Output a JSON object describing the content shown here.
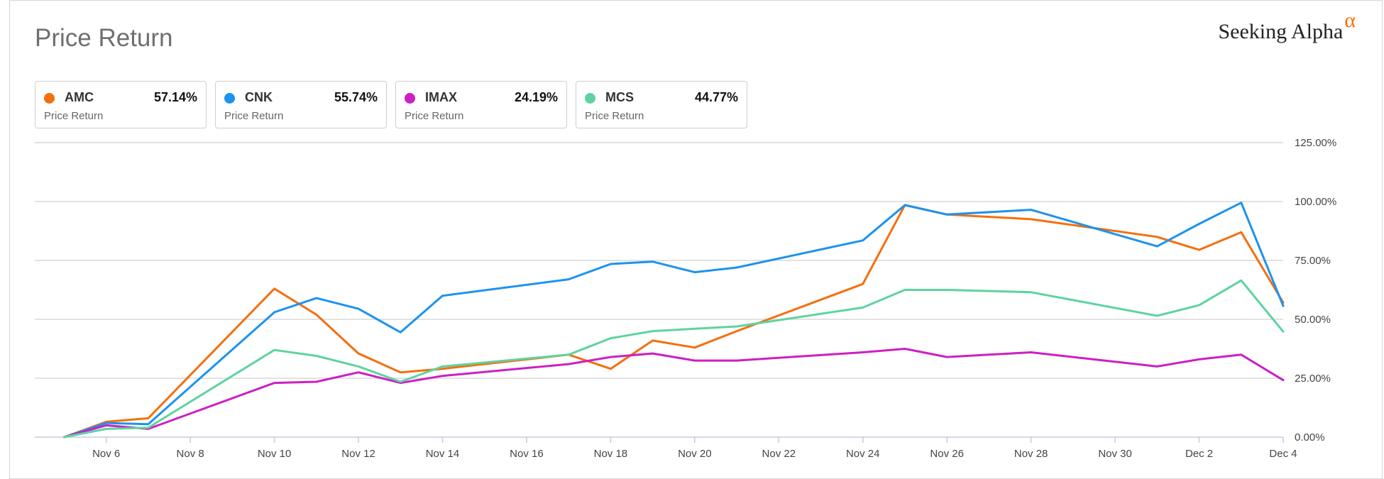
{
  "title": "Price Return",
  "brand": {
    "name": "Seeking Alpha",
    "mark": "α"
  },
  "cards": [
    {
      "ticker": "AMC",
      "value": "57.14%",
      "sub": "Price Return",
      "color": "#f46f0e"
    },
    {
      "ticker": "CNK",
      "value": "55.74%",
      "sub": "Price Return",
      "color": "#1c93ee"
    },
    {
      "ticker": "IMAX",
      "value": "24.19%",
      "sub": "Price Return",
      "color": "#cc1fc4"
    },
    {
      "ticker": "MCS",
      "value": "44.77%",
      "sub": "Price Return",
      "color": "#5ed3a0"
    }
  ],
  "chart_data": {
    "type": "line",
    "xlim": [
      4.3,
      34.0
    ],
    "ylim": [
      0,
      125
    ],
    "y_ticks": [
      0,
      25,
      50,
      75,
      100,
      125
    ],
    "y_tick_labels": [
      "0.00%",
      "25.00%",
      "50.00%",
      "75.00%",
      "100.00%",
      "125.00%"
    ],
    "x_ticks": [
      6,
      8,
      10,
      12,
      14,
      16,
      18,
      20,
      22,
      24,
      26,
      28,
      30,
      32,
      34
    ],
    "x_tick_labels": [
      "Nov 6",
      "Nov 8",
      "Nov 10",
      "Nov 12",
      "Nov 14",
      "Nov 16",
      "Nov 18",
      "Nov 20",
      "Nov 22",
      "Nov 24",
      "Nov 26",
      "Nov 28",
      "Nov 30",
      "Dec 2",
      "Dec 4"
    ],
    "grid": true,
    "series": [
      {
        "name": "AMC",
        "color": "#f46f0e",
        "points": [
          [
            5,
            0
          ],
          [
            6,
            6.5
          ],
          [
            7,
            8
          ],
          [
            10,
            63
          ],
          [
            11,
            52
          ],
          [
            12,
            35.5
          ],
          [
            13,
            27.5
          ],
          [
            14,
            29
          ],
          [
            17,
            35
          ],
          [
            18,
            29
          ],
          [
            19,
            41
          ],
          [
            20,
            38
          ],
          [
            21,
            45
          ],
          [
            24,
            65
          ],
          [
            25,
            98.5
          ],
          [
            26,
            94.5
          ],
          [
            28,
            92.5
          ],
          [
            31,
            85
          ],
          [
            32,
            79.5
          ],
          [
            33,
            87
          ],
          [
            34,
            57.1
          ]
        ]
      },
      {
        "name": "CNK",
        "color": "#1c93ee",
        "points": [
          [
            5,
            0
          ],
          [
            6,
            6
          ],
          [
            7,
            5.5
          ],
          [
            10,
            53
          ],
          [
            11,
            59
          ],
          [
            12,
            54.5
          ],
          [
            13,
            44.5
          ],
          [
            14,
            60
          ],
          [
            17,
            67
          ],
          [
            18,
            73.5
          ],
          [
            19,
            74.5
          ],
          [
            20,
            70
          ],
          [
            21,
            72
          ],
          [
            24,
            83.5
          ],
          [
            25,
            98.5
          ],
          [
            26,
            94.5
          ],
          [
            28,
            96.5
          ],
          [
            31,
            81
          ],
          [
            32,
            90.5
          ],
          [
            33,
            99.5
          ],
          [
            34,
            55.7
          ]
        ]
      },
      {
        "name": "IMAX",
        "color": "#cc1fc4",
        "points": [
          [
            5,
            0
          ],
          [
            6,
            5
          ],
          [
            7,
            3.5
          ],
          [
            10,
            23
          ],
          [
            11,
            23.5
          ],
          [
            12,
            27.5
          ],
          [
            13,
            23
          ],
          [
            14,
            26
          ],
          [
            17,
            31
          ],
          [
            18,
            34
          ],
          [
            19,
            35.5
          ],
          [
            20,
            32.5
          ],
          [
            21,
            32.5
          ],
          [
            24,
            36
          ],
          [
            25,
            37.5
          ],
          [
            26,
            34
          ],
          [
            28,
            36
          ],
          [
            31,
            30
          ],
          [
            32,
            33
          ],
          [
            33,
            35
          ],
          [
            34,
            24.2
          ]
        ]
      },
      {
        "name": "MCS",
        "color": "#5ed3a0",
        "points": [
          [
            5,
            0
          ],
          [
            6,
            3.5
          ],
          [
            7,
            4
          ],
          [
            10,
            37
          ],
          [
            11,
            34.5
          ],
          [
            12,
            30
          ],
          [
            13,
            23.5
          ],
          [
            14,
            30
          ],
          [
            17,
            35
          ],
          [
            18,
            42
          ],
          [
            19,
            45
          ],
          [
            20,
            46
          ],
          [
            21,
            47
          ],
          [
            24,
            55
          ],
          [
            25,
            62.5
          ],
          [
            26,
            62.5
          ],
          [
            28,
            61.5
          ],
          [
            31,
            51.5
          ],
          [
            32,
            56
          ],
          [
            33,
            66.5
          ],
          [
            34,
            44.8
          ]
        ]
      }
    ]
  }
}
